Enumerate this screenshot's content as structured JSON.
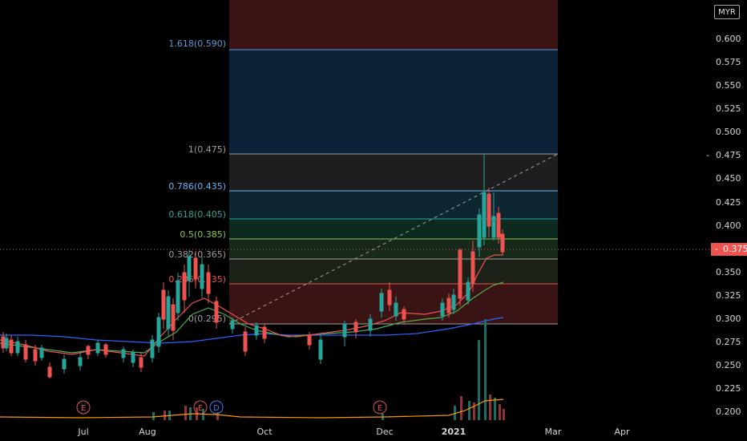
{
  "currency": "MYR",
  "last_price": "0.375",
  "price_axis_labels": [
    "0.600",
    "0.575",
    "0.550",
    "0.525",
    "0.500",
    "0.475",
    "0.450",
    "0.425",
    "0.400",
    "0.375",
    "0.350",
    "0.325",
    "0.300",
    "0.275",
    "0.250",
    "0.225",
    "0.200"
  ],
  "time_axis_labels": [
    "Jul",
    "Aug",
    "Oct",
    "Dec",
    "2021",
    "Mar",
    "Apr"
  ],
  "fib_levels": [
    {
      "label": "1.618(0.590)",
      "price": 0.59,
      "color": "#5b9bd5"
    },
    {
      "label": "1(0.475)",
      "price": 0.475,
      "color": "#9e9e9e"
    },
    {
      "label": "0.786(0.435)",
      "price": 0.435,
      "color": "#64b5f6"
    },
    {
      "label": "0.618(0.405)",
      "price": 0.405,
      "color": "#26a69a"
    },
    {
      "label": "0.5(0.385)",
      "price": 0.385,
      "color": "#8bc34a"
    },
    {
      "label": "0.382(0.365)",
      "price": 0.365,
      "color": "#9e9e9e"
    },
    {
      "label": "0.236(0.335)",
      "price": 0.335,
      "color": "#ef5350"
    },
    {
      "label": "0(0.295)",
      "price": 0.295,
      "color": "#9e9e9e"
    }
  ],
  "event_markers": [
    {
      "label": "E",
      "color": "#e0514f"
    },
    {
      "label": "E",
      "color": "#e0514f"
    },
    {
      "label": "D",
      "color": "#2f80ed"
    },
    {
      "label": "E",
      "color": "#e0514f"
    }
  ],
  "colors": {
    "up": "#26a69a",
    "down": "#ef5350",
    "ema_fast": "#ef5350",
    "ema_slow": "#4caf50",
    "ma_long": "#2962ff"
  }
}
